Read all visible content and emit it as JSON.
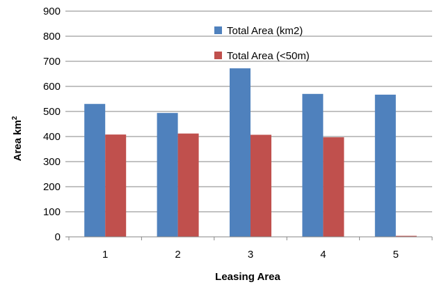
{
  "chart_data": {
    "type": "bar",
    "categories": [
      "1",
      "2",
      "3",
      "4",
      "5"
    ],
    "series": [
      {
        "name": "Total Area (km2)",
        "values": [
          530,
          494,
          672,
          570,
          567
        ],
        "color": "#4F81BD"
      },
      {
        "name": "Total Area (<50m)",
        "values": [
          408,
          412,
          407,
          397,
          4
        ],
        "color": "#C0504D"
      }
    ],
    "title": "",
    "xlabel": "Leasing Area",
    "ylabel": {
      "text": "Area km",
      "superscript": "2"
    },
    "ylim": [
      0,
      900
    ],
    "yticks": [
      "0",
      "100",
      "200",
      "300",
      "400",
      "500",
      "600",
      "700",
      "800",
      "900"
    ],
    "grid": true,
    "legend_position": "top-right"
  }
}
